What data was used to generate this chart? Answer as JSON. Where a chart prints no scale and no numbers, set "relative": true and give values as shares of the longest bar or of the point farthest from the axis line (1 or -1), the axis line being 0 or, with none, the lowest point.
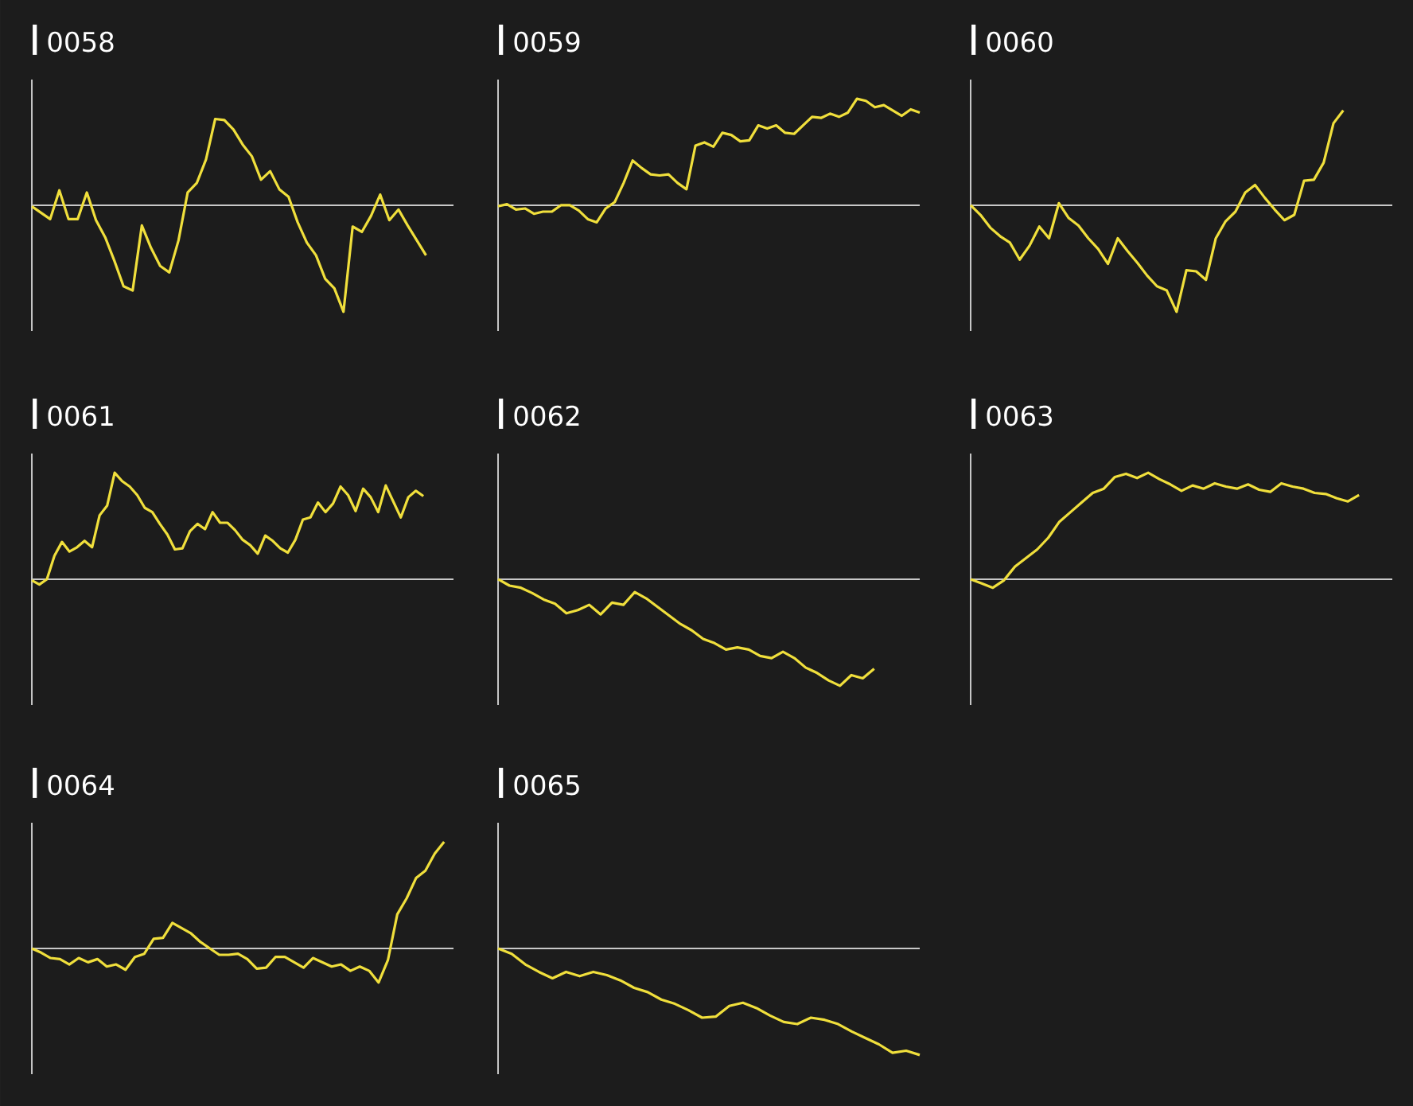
{
  "chart_data": [
    {
      "type": "line",
      "title": "0058",
      "relative": true,
      "color": "#f0df3c",
      "categories": [
        null,
        null,
        null,
        null,
        null,
        null,
        null,
        null,
        null,
        null,
        null,
        null,
        null,
        null,
        null,
        null,
        null,
        null,
        null,
        null,
        null,
        null,
        null,
        null,
        null,
        null,
        null,
        null,
        null,
        null,
        null,
        null,
        null,
        null,
        null,
        null,
        null,
        null,
        null,
        null,
        null,
        null,
        null,
        null,
        null,
        null,
        null
      ],
      "values": [
        -0.01,
        -0.07,
        -0.13,
        0.14,
        -0.13,
        -0.13,
        0.12,
        -0.14,
        -0.3,
        -0.52,
        -0.76,
        -0.8,
        -0.19,
        -0.4,
        -0.57,
        -0.63,
        -0.33,
        0.12,
        0.21,
        0.43,
        0.81,
        0.8,
        0.71,
        0.57,
        0.46,
        0.24,
        0.32,
        0.15,
        0.08,
        -0.16,
        -0.35,
        -0.47,
        -0.69,
        -0.78,
        -1,
        -0.2,
        -0.25,
        -0.1,
        0.1,
        -0.14,
        -0.04,
        -0.19,
        -0.33,
        -0.47,
        null,
        null,
        null
      ]
    },
    {
      "type": "line",
      "title": "0059",
      "relative": true,
      "color": "#f0df3c",
      "categories": [
        null,
        null,
        null,
        null,
        null,
        null,
        null,
        null,
        null,
        null,
        null,
        null,
        null,
        null,
        null,
        null,
        null,
        null,
        null,
        null,
        null,
        null,
        null,
        null,
        null,
        null,
        null,
        null,
        null,
        null,
        null,
        null,
        null,
        null,
        null,
        null,
        null,
        null,
        null,
        null,
        null,
        null,
        null,
        null,
        null,
        null,
        null,
        null
      ],
      "values": [
        -0.01,
        0.01,
        -0.04,
        -0.03,
        -0.08,
        -0.06,
        -0.06,
        0,
        0,
        -0.05,
        -0.13,
        -0.16,
        -0.03,
        0.03,
        0.21,
        0.42,
        0.35,
        0.29,
        0.28,
        0.29,
        0.21,
        0.15,
        0.56,
        0.59,
        0.55,
        0.68,
        0.66,
        0.6,
        0.61,
        0.75,
        0.72,
        0.75,
        0.68,
        0.67,
        0.75,
        0.83,
        0.82,
        0.86,
        0.83,
        0.87,
        1,
        0.98,
        0.92,
        0.94,
        0.89,
        0.84,
        0.9,
        0.87
      ]
    },
    {
      "type": "line",
      "title": "0060",
      "relative": true,
      "color": "#f0df3c",
      "categories": [
        null,
        null,
        null,
        null,
        null,
        null,
        null,
        null,
        null,
        null,
        null,
        null,
        null,
        null,
        null,
        null,
        null,
        null,
        null,
        null,
        null,
        null,
        null,
        null,
        null,
        null,
        null,
        null,
        null,
        null,
        null,
        null,
        null,
        null,
        null,
        null,
        null,
        null,
        null,
        null,
        null,
        null,
        null,
        null
      ],
      "values": [
        0,
        -0.09,
        -0.21,
        -0.29,
        -0.35,
        -0.51,
        -0.38,
        -0.2,
        -0.31,
        0.02,
        -0.12,
        -0.19,
        -0.31,
        -0.41,
        -0.55,
        -0.31,
        -0.43,
        -0.54,
        -0.66,
        -0.76,
        -0.8,
        -1,
        -0.61,
        -0.62,
        -0.7,
        -0.31,
        -0.15,
        -0.06,
        0.12,
        0.19,
        0.07,
        -0.04,
        -0.14,
        -0.09,
        0.23,
        0.24,
        0.4,
        0.77,
        0.89,
        null,
        null,
        null,
        null,
        null
      ]
    },
    {
      "type": "line",
      "title": "0061",
      "relative": true,
      "color": "#f0df3c",
      "categories": [
        null,
        null,
        null,
        null,
        null,
        null,
        null,
        null,
        null,
        null,
        null,
        null,
        null,
        null,
        null,
        null,
        null,
        null,
        null,
        null,
        null,
        null,
        null,
        null,
        null,
        null,
        null,
        null,
        null,
        null,
        null,
        null,
        null,
        null,
        null,
        null,
        null,
        null,
        null,
        null,
        null,
        null,
        null,
        null,
        null,
        null,
        null,
        null,
        null,
        null,
        null,
        null,
        null,
        null,
        null,
        null,
        null
      ],
      "values": [
        -0.01,
        -0.05,
        0.0,
        0.22,
        0.35,
        0.26,
        0.3,
        0.36,
        0.3,
        0.6,
        0.69,
        1,
        0.92,
        0.87,
        0.79,
        0.67,
        0.63,
        0.52,
        0.42,
        0.28,
        0.29,
        0.45,
        0.52,
        0.47,
        0.63,
        0.53,
        0.53,
        0.46,
        0.37,
        0.32,
        0.24,
        0.41,
        0.36,
        0.29,
        0.25,
        0.37,
        0.56,
        0.58,
        0.72,
        0.63,
        0.71,
        0.87,
        0.79,
        0.64,
        0.85,
        0.77,
        0.63,
        0.88,
        0.73,
        0.58,
        0.77,
        0.83,
        0.78,
        null,
        null,
        null,
        null
      ]
    },
    {
      "type": "line",
      "title": "0062",
      "relative": true,
      "color": "#f0df3c",
      "categories": [
        null,
        null,
        null,
        null,
        null,
        null,
        null,
        null,
        null,
        null,
        null,
        null,
        null,
        null,
        null,
        null,
        null,
        null,
        null,
        null,
        null,
        null,
        null,
        null,
        null,
        null,
        null,
        null,
        null,
        null,
        null,
        null,
        null,
        null,
        null,
        null,
        null,
        null
      ],
      "values": [
        0,
        -0.06,
        -0.08,
        -0.13,
        -0.19,
        -0.23,
        -0.32,
        -0.29,
        -0.24,
        -0.33,
        -0.22,
        -0.24,
        -0.12,
        -0.18,
        -0.26,
        -0.34,
        -0.42,
        -0.48,
        -0.56,
        -0.6,
        -0.66,
        -0.64,
        -0.66,
        -0.72,
        -0.74,
        -0.68,
        -0.74,
        -0.83,
        -0.88,
        -0.95,
        -1,
        -0.9,
        -0.93,
        -0.84,
        null,
        null,
        null,
        null
      ]
    },
    {
      "type": "line",
      "title": "0063",
      "relative": true,
      "color": "#f0df3c",
      "categories": [
        null,
        null,
        null,
        null,
        null,
        null,
        null,
        null,
        null,
        null,
        null,
        null,
        null,
        null,
        null,
        null,
        null,
        null,
        null,
        null,
        null,
        null,
        null,
        null,
        null,
        null,
        null,
        null,
        null,
        null,
        null,
        null,
        null,
        null,
        null,
        null,
        null,
        null,
        null
      ],
      "values": [
        0,
        -0.04,
        -0.08,
        -0.01,
        0.12,
        0.2,
        0.28,
        0.39,
        0.54,
        0.63,
        0.72,
        0.81,
        0.85,
        0.96,
        0.99,
        0.95,
        1,
        0.94,
        0.89,
        0.83,
        0.88,
        0.85,
        0.9,
        0.87,
        0.85,
        0.89,
        0.84,
        0.82,
        0.9,
        0.87,
        0.85,
        0.81,
        0.8,
        0.76,
        0.73,
        0.79,
        null,
        null,
        null
      ]
    },
    {
      "type": "line",
      "title": "0064",
      "relative": true,
      "color": "#f0df3c",
      "categories": [
        null,
        null,
        null,
        null,
        null,
        null,
        null,
        null,
        null,
        null,
        null,
        null,
        null,
        null,
        null,
        null,
        null,
        null,
        null,
        null,
        null,
        null,
        null,
        null,
        null,
        null,
        null,
        null,
        null,
        null,
        null,
        null,
        null,
        null,
        null,
        null,
        null,
        null,
        null,
        null,
        null,
        null,
        null,
        null,
        null,
        null
      ],
      "values": [
        0,
        -0.04,
        -0.09,
        -0.1,
        -0.15,
        -0.09,
        -0.13,
        -0.1,
        -0.17,
        -0.15,
        -0.2,
        -0.08,
        -0.05,
        0.09,
        0.1,
        0.24,
        0.19,
        0.14,
        0.06,
        0,
        -0.06,
        -0.06,
        -0.05,
        -0.1,
        -0.19,
        -0.18,
        -0.08,
        -0.08,
        -0.13,
        -0.18,
        -0.09,
        -0.13,
        -0.17,
        -0.15,
        -0.21,
        -0.17,
        -0.21,
        -0.32,
        -0.11,
        0.32,
        0.47,
        0.66,
        0.73,
        0.89,
        1,
        null
      ]
    },
    {
      "type": "line",
      "title": "0065",
      "relative": true,
      "color": "#f0df3c",
      "categories": [
        null,
        null,
        null,
        null,
        null,
        null,
        null,
        null,
        null,
        null,
        null,
        null,
        null,
        null,
        null,
        null,
        null,
        null,
        null,
        null,
        null,
        null,
        null,
        null,
        null,
        null,
        null,
        null,
        null,
        null,
        null,
        null
      ],
      "values": [
        0,
        -0.05,
        -0.15,
        -0.22,
        -0.28,
        -0.22,
        -0.26,
        -0.22,
        -0.25,
        -0.3,
        -0.37,
        -0.41,
        -0.48,
        -0.52,
        -0.58,
        -0.65,
        -0.64,
        -0.54,
        -0.51,
        -0.56,
        -0.63,
        -0.69,
        -0.71,
        -0.65,
        -0.67,
        -0.71,
        -0.78,
        -0.84,
        -0.9,
        -0.98,
        -0.96,
        -1
      ]
    }
  ]
}
